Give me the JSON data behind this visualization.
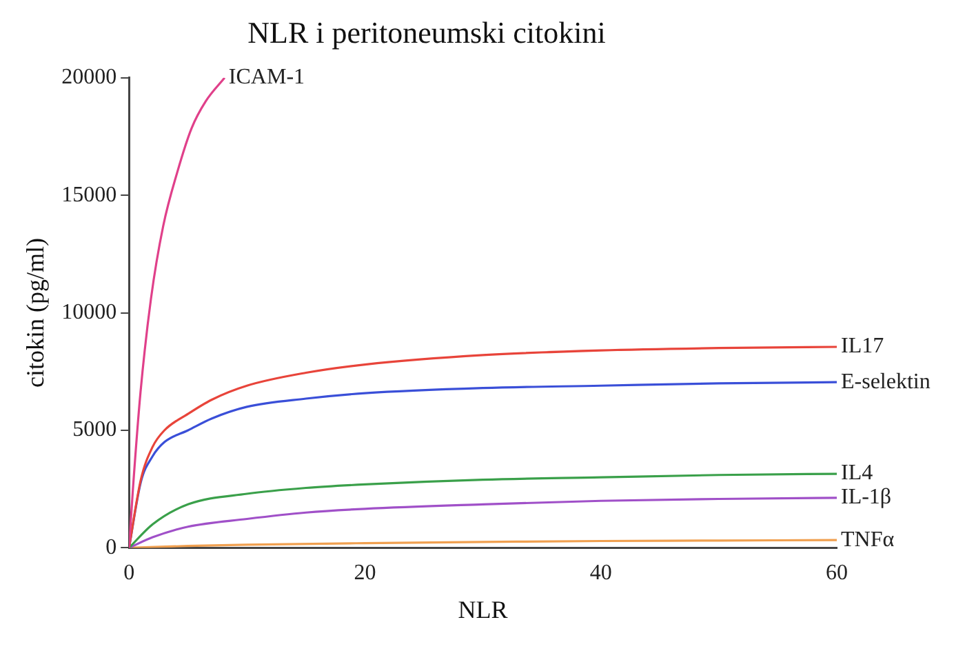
{
  "chart_data": {
    "type": "line",
    "title": "NLR i peritoneumski citokini",
    "xlabel": "NLR",
    "ylabel": "citokin (pg/ml)",
    "xlim": [
      0,
      60
    ],
    "xticks": [
      0,
      20,
      40,
      60
    ],
    "ylim": [
      0,
      20000
    ],
    "yticks": [
      0,
      5000,
      10000,
      15000,
      20000
    ],
    "grid": false,
    "legend": false,
    "marker": "none",
    "series": [
      {
        "name": "ICAM-1",
        "color": "#e0408a",
        "x": [
          0,
          0.33,
          0.97,
          1.86,
          2.9,
          4.1,
          5.3,
          6.5,
          8.1
        ],
        "values": [
          0,
          2500,
          6600,
          10600,
          13700,
          16000,
          17850,
          19000,
          20000
        ]
      },
      {
        "name": "IL17",
        "color": "#e8443a",
        "x": [
          0,
          1,
          2,
          3,
          5,
          7,
          10,
          15,
          20,
          30,
          40,
          50,
          60
        ],
        "values": [
          0,
          2900,
          4300,
          5000,
          5700,
          6300,
          6900,
          7450,
          7800,
          8200,
          8400,
          8500,
          8550
        ]
      },
      {
        "name": "E-selektin",
        "color": "#3a4fd8",
        "x": [
          0,
          1,
          2,
          3,
          5,
          7,
          10,
          15,
          20,
          30,
          40,
          50,
          60
        ],
        "values": [
          0,
          2800,
          3900,
          4500,
          5000,
          5500,
          6000,
          6350,
          6580,
          6800,
          6900,
          7000,
          7050
        ]
      },
      {
        "name": "IL4",
        "color": "#3aa04a",
        "x": [
          0,
          2,
          5,
          10,
          15,
          20,
          30,
          40,
          50,
          60
        ],
        "values": [
          0,
          1000,
          1850,
          2300,
          2550,
          2700,
          2900,
          3000,
          3100,
          3150
        ]
      },
      {
        "name": "IL-1β",
        "color": "#a050c8",
        "x": [
          0,
          2,
          5,
          10,
          15,
          20,
          30,
          40,
          50,
          60
        ],
        "values": [
          0,
          450,
          900,
          1230,
          1500,
          1660,
          1850,
          2000,
          2080,
          2130
        ]
      },
      {
        "name": "TNFα",
        "color": "#f0a050",
        "x": [
          0,
          5,
          10,
          20,
          30,
          40,
          50,
          60
        ],
        "values": [
          0,
          80,
          130,
          200,
          250,
          290,
          310,
          330
        ]
      }
    ]
  }
}
